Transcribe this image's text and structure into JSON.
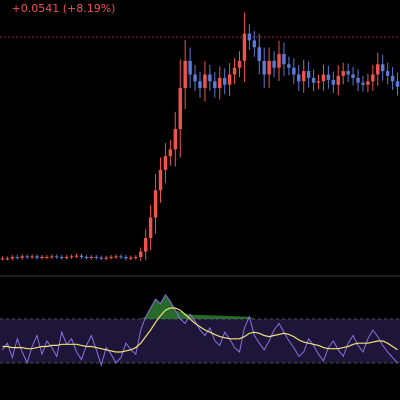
{
  "header": {
    "change_text": "+0.0541 (+8.19%)",
    "change_color": "#ef5350"
  },
  "colors": {
    "background": "#000000",
    "up_candle": "#ef5350",
    "down_candle": "#5b7bd6",
    "reference_line": "#ef5350",
    "rsi_line": "#8b6fe0",
    "rsi_signal": "#f2e07a",
    "rsi_band": "#1d1638",
    "rsi_overbought_fill": "#2e7d32",
    "pane_separator": "#3a3a3a"
  },
  "chart_data": [
    {
      "type": "candlestick",
      "title": "",
      "series": [
        {
          "name": "",
          "close": [
            0.37,
            0.37,
            0.372,
            0.371,
            0.373,
            0.372,
            0.373,
            0.371,
            0.372,
            0.372,
            0.373,
            0.372,
            0.371,
            0.372,
            0.373,
            0.374,
            0.372,
            0.371,
            0.372,
            0.371,
            0.37,
            0.371,
            0.372,
            0.373,
            0.372,
            0.37,
            0.371,
            0.372,
            0.38,
            0.4,
            0.43,
            0.47,
            0.5,
            0.52,
            0.53,
            0.56,
            0.62,
            0.66,
            0.64,
            0.63,
            0.62,
            0.64,
            0.63,
            0.62,
            0.635,
            0.625,
            0.64,
            0.65,
            0.66,
            0.7,
            0.69,
            0.68,
            0.66,
            0.64,
            0.66,
            0.65,
            0.67,
            0.655,
            0.65,
            0.64,
            0.63,
            0.645,
            0.635,
            0.628,
            0.63,
            0.64,
            0.632,
            0.625,
            0.638,
            0.645,
            0.64,
            0.635,
            0.628,
            0.625,
            0.63,
            0.64,
            0.655,
            0.645,
            0.638,
            0.63,
            0.622
          ]
        }
      ],
      "reference_line": 0.695,
      "ylim": [
        0.35,
        0.72
      ]
    },
    {
      "type": "line",
      "title": "",
      "overbought": 70,
      "oversold": 30,
      "ylim": [
        0,
        100
      ],
      "series": [
        {
          "name": "",
          "values": [
            42,
            48,
            35,
            52,
            40,
            30,
            45,
            55,
            38,
            50,
            44,
            36,
            58,
            47,
            52,
            40,
            33,
            46,
            55,
            42,
            28,
            44,
            38,
            30,
            35,
            48,
            42,
            38,
            60,
            72,
            80,
            88,
            84,
            92,
            86,
            78,
            70,
            66,
            74,
            68,
            60,
            55,
            62,
            50,
            46,
            58,
            52,
            44,
            40,
            62,
            72,
            55,
            48,
            42,
            50,
            60,
            66,
            58,
            50,
            44,
            36,
            40,
            52,
            46,
            38,
            32,
            44,
            50,
            42,
            36,
            48,
            55,
            46,
            40,
            52,
            60,
            54,
            46,
            40,
            35,
            30
          ]
        },
        {
          "name": "",
          "values": [
            45,
            45,
            44,
            44,
            44,
            43,
            43,
            44,
            45,
            45,
            46,
            46,
            47,
            47,
            47,
            47,
            46,
            45,
            45,
            44,
            43,
            42,
            41,
            40,
            40,
            41,
            42,
            44,
            48,
            54,
            60,
            67,
            73,
            78,
            80,
            80,
            78,
            74,
            70,
            66,
            63,
            60,
            58,
            56,
            54,
            53,
            52,
            52,
            52,
            54,
            57,
            58,
            57,
            55,
            54,
            55,
            56,
            57,
            56,
            54,
            51,
            49,
            48,
            47,
            46,
            44,
            43,
            43,
            43,
            44,
            45,
            47,
            48,
            48,
            48,
            49,
            50,
            50,
            48,
            45,
            42
          ]
        }
      ]
    }
  ]
}
